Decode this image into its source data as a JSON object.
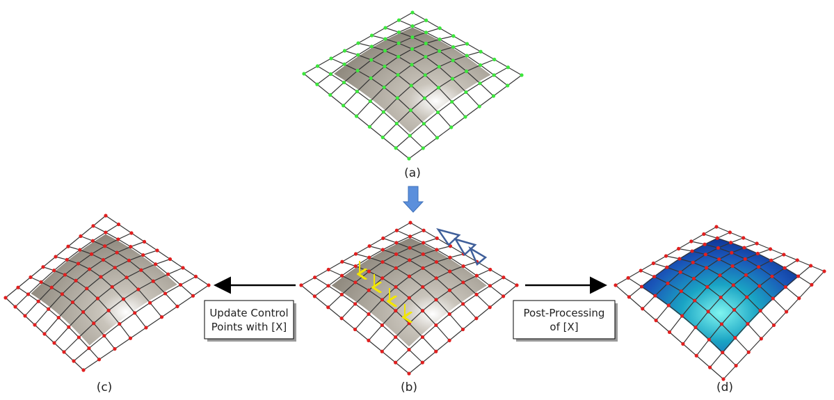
{
  "panels": [
    {
      "label": "(a)"
    },
    {
      "label": "(b)"
    },
    {
      "label": "(c)"
    },
    {
      "label": "(d)"
    }
  ],
  "boxes": [
    {
      "lines": [
        "Update Control",
        "Points with [X]"
      ]
    },
    {
      "lines": [
        "Post-Processing",
        "of [X]"
      ]
    }
  ]
}
